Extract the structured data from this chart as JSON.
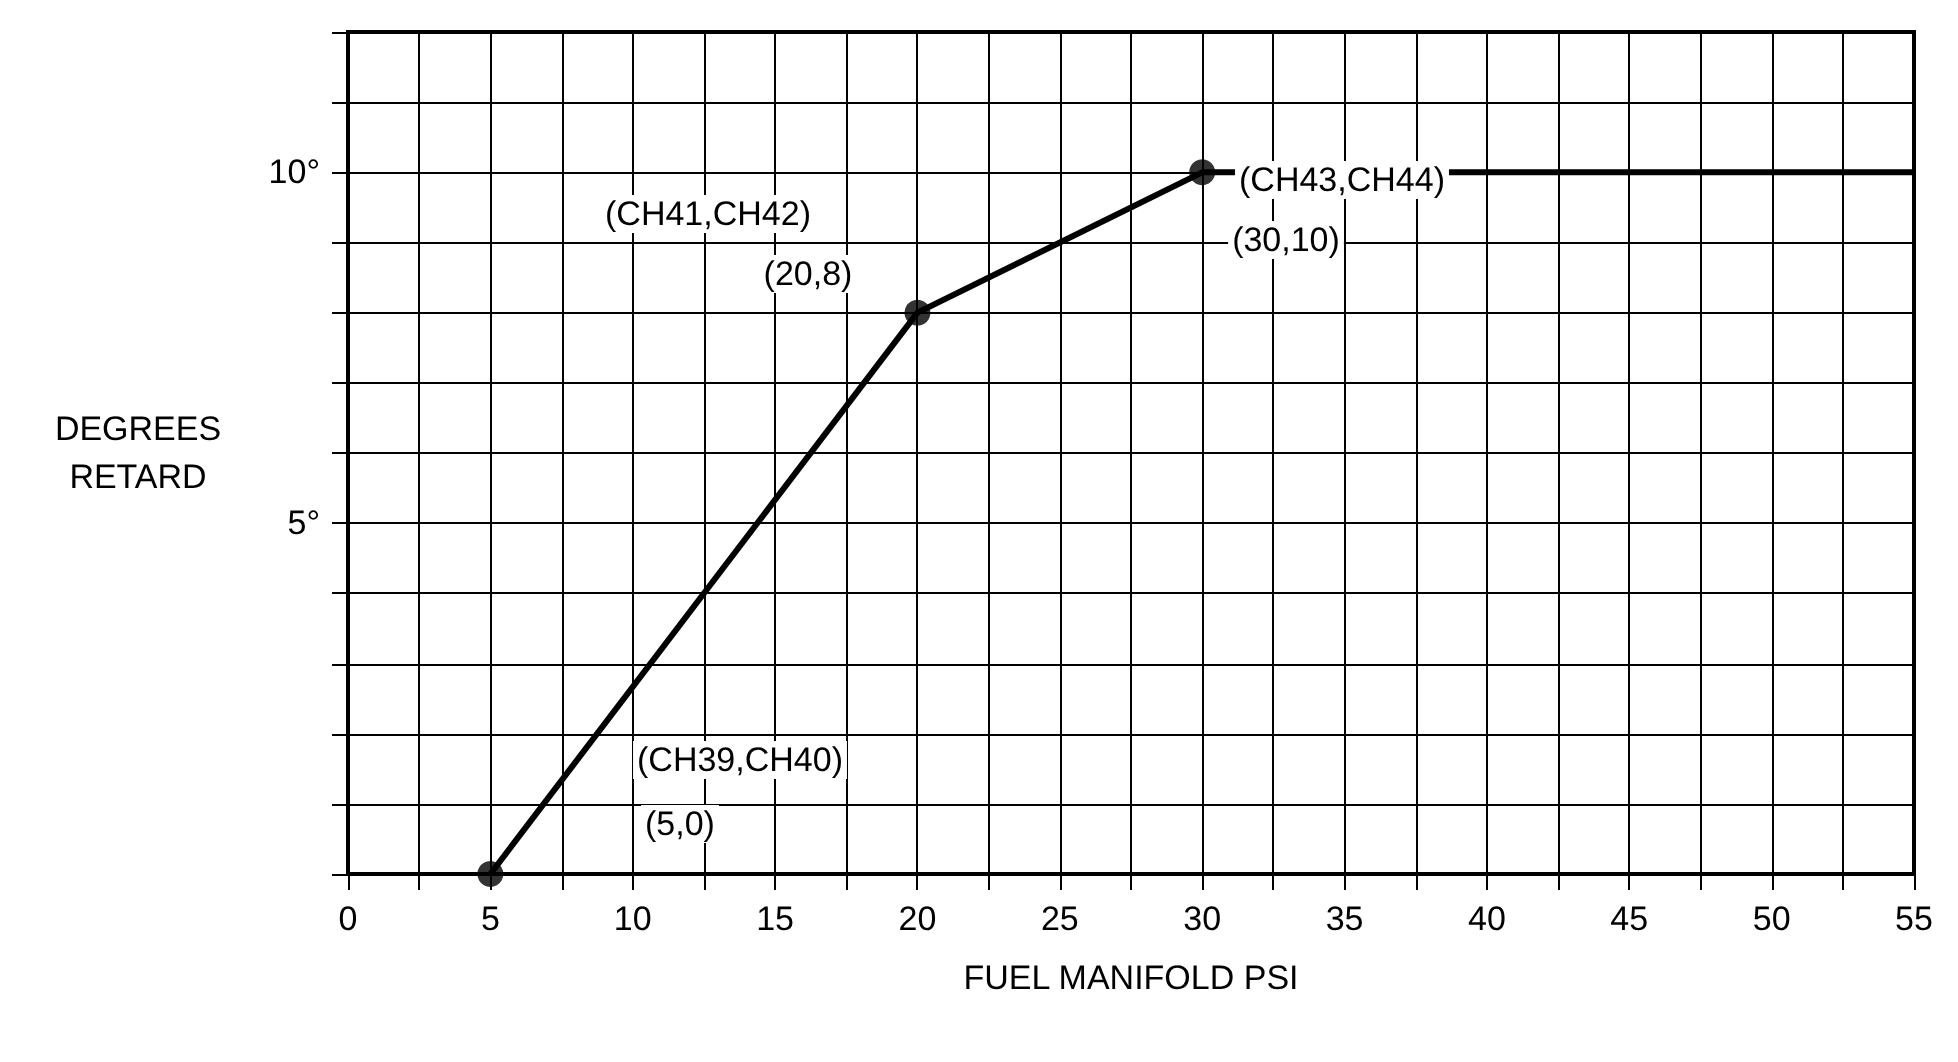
{
  "chart_data": {
    "type": "line",
    "xlabel": "FUEL MANIFOLD PSI",
    "ylabel": "DEGREES\nRETARD",
    "series": [
      {
        "color": "#000000",
        "marker": "none",
        "x": [
          5,
          20,
          30,
          55
        ],
        "values": [
          0,
          8,
          10,
          10
        ]
      },
      {
        "type": "scatter",
        "color": "#000000",
        "marker": "circle",
        "x": [
          5,
          20,
          30
        ],
        "values": [
          0,
          8,
          10
        ]
      }
    ],
    "xlim": [
      0,
      55
    ],
    "xticks": [
      0,
      {
        "value": 2.5,
        "label": null
      },
      5,
      {
        "value": 7.5,
        "label": null
      },
      10,
      {
        "value": 12.5,
        "label": null
      },
      15,
      {
        "value": 17.5,
        "label": null
      },
      20,
      {
        "value": 22.5,
        "label": null
      },
      25,
      {
        "value": 27.5,
        "label": null
      },
      30,
      {
        "value": 32.5,
        "label": null
      },
      35,
      {
        "value": 37.5,
        "label": null
      },
      40,
      {
        "value": 42.5,
        "label": null
      },
      45,
      {
        "value": 47.5,
        "label": null
      },
      50,
      {
        "value": 52.5,
        "label": null
      },
      55
    ],
    "ylim": [
      0,
      12
    ],
    "yticks": [
      {
        "value": 0,
        "label": null
      },
      {
        "value": 1,
        "label": null
      },
      {
        "value": 2,
        "label": null
      },
      {
        "value": 3,
        "label": null
      },
      {
        "value": 4,
        "label": null
      },
      {
        "value": 5,
        "label": "5°"
      },
      {
        "value": 6,
        "label": null
      },
      {
        "value": 7,
        "label": null
      },
      {
        "value": 8,
        "label": null
      },
      {
        "value": 9,
        "label": null
      },
      {
        "value": 10,
        "label": "10°"
      },
      {
        "value": 11,
        "label": null
      },
      {
        "value": 12,
        "label": null
      }
    ],
    "grid": true,
    "line_style": "solid",
    "annotations": [
      "(CH39,CH40)",
      "(5,0)",
      "(CH41,CH42)",
      "(20,8)",
      "(CH43,CH44)",
      "(30,10)"
    ]
  }
}
